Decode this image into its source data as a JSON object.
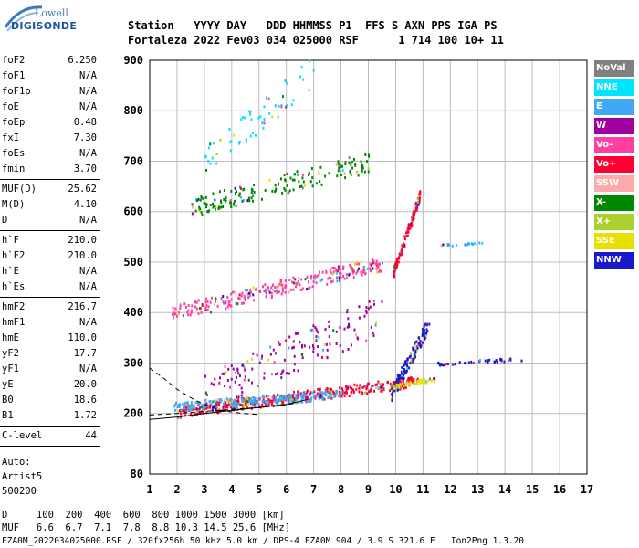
{
  "logo": {
    "top": "Lowell",
    "bottom": "DIGISONDE"
  },
  "header": {
    "row1": "Station   YYYY DAY   DDD HHMMSS P1  FFS S AXN PPS IGA PS",
    "row2": "Fortaleza 2022 Fev03 034 025000 RSF      1 714 100 10+ 11"
  },
  "params_group1": [
    {
      "label": "foF2",
      "value": "6.250"
    },
    {
      "label": "foF1",
      "value": "N/A"
    },
    {
      "label": "foF1p",
      "value": "N/A"
    },
    {
      "label": "foE",
      "value": "N/A"
    },
    {
      "label": "foEp",
      "value": "0.48"
    },
    {
      "label": "fxI",
      "value": "7.30"
    },
    {
      "label": "foEs",
      "value": "N/A"
    },
    {
      "label": "fmin",
      "value": "3.70"
    }
  ],
  "params_group2": [
    {
      "label": "MUF(D)",
      "value": "25.62"
    },
    {
      "label": "M(D)",
      "value": "4.10"
    },
    {
      "label": "D",
      "value": "N/A"
    }
  ],
  "params_group3": [
    {
      "label": "h`F",
      "value": "210.0"
    },
    {
      "label": "h`F2",
      "value": "210.0"
    },
    {
      "label": "h`E",
      "value": "N/A"
    },
    {
      "label": "h`Es",
      "value": "N/A"
    }
  ],
  "params_group4": [
    {
      "label": "hmF2",
      "value": "216.7"
    },
    {
      "label": "hmF1",
      "value": "N/A"
    },
    {
      "label": "hmE",
      "value": "110.0"
    },
    {
      "label": "yF2",
      "value": "17.7"
    },
    {
      "label": "yF1",
      "value": "N/A"
    },
    {
      "label": "yE",
      "value": "20.0"
    },
    {
      "label": "B0",
      "value": "18.6"
    },
    {
      "label": "B1",
      "value": "1.72"
    }
  ],
  "params_group5": [
    {
      "label": "C-level",
      "value": "44"
    }
  ],
  "auto": {
    "line1": "Auto:",
    "line2": "Artist5",
    "line3": "500200"
  },
  "legend": [
    {
      "name": "NoVal",
      "color": "#808080"
    },
    {
      "name": "NNE",
      "color": "#00e5ff"
    },
    {
      "name": "E",
      "color": "#3fa9f5"
    },
    {
      "name": "W",
      "color": "#a000a0"
    },
    {
      "name": "Vo-",
      "color": "#ff40a0"
    },
    {
      "name": "Vo+",
      "color": "#ff0033"
    },
    {
      "name": "SSW",
      "color": "#ffaaaa"
    },
    {
      "name": "X-",
      "color": "#008800"
    },
    {
      "name": "X+",
      "color": "#aad030"
    },
    {
      "name": "SSE",
      "color": "#e8e000"
    },
    {
      "name": "NNW",
      "color": "#1a1acc"
    }
  ],
  "bottom": {
    "d_row": "D     100  200  400  600  800 1000 1500 3000 [km]",
    "muf_row": "MUF   6.6  6.7  7.1  7.8  8.8 10.3 14.5 25.6 [MHz]",
    "footer": "FZA0M_2022034025000.RSF / 320fx256h 50 kHz 5.0 km / DPS-4 FZA0M 904 / 3.9 S 321.6 E   Ion2Png 1.3.20"
  },
  "chart_data": {
    "type": "scatter",
    "xlim": [
      1,
      17
    ],
    "ylim": [
      80,
      900
    ],
    "x_ticks": [
      1,
      2,
      3,
      4,
      5,
      6,
      7,
      8,
      9,
      10,
      11,
      12,
      13,
      14,
      15,
      16,
      17
    ],
    "y_ticks": [
      80,
      200,
      300,
      400,
      500,
      600,
      700,
      800,
      900
    ],
    "grid": true,
    "legend_position": "right",
    "traces": [
      {
        "name": "F-layer 1st hop",
        "color": "#ff0033",
        "x_range": [
          2.0,
          10.8
        ],
        "y_start": 205,
        "y_end": 265,
        "spread": 22,
        "count": 420
      },
      {
        "name": "F-layer 1st hop o",
        "color": "#3fa9f5",
        "x_range": [
          1.8,
          8.0
        ],
        "y_start": 215,
        "y_end": 240,
        "spread": 18,
        "count": 220
      },
      {
        "name": "2nd hop",
        "color": "#ff40a0",
        "x_range": [
          1.8,
          9.5
        ],
        "y_start": 400,
        "y_end": 500,
        "spread": 30,
        "count": 280
      },
      {
        "name": "3rd hop",
        "color": "#008800",
        "x_range": [
          2.5,
          9.0
        ],
        "y_start": 610,
        "y_end": 700,
        "spread": 40,
        "count": 170
      },
      {
        "name": "Spread F",
        "color": "#a000a0",
        "x_range": [
          3.0,
          9.5
        ],
        "y_start": 240,
        "y_end": 400,
        "spread": 80,
        "count": 160
      },
      {
        "name": "Top",
        "color": "#00e5ff",
        "x_range": [
          3.0,
          7.0
        ],
        "y_start": 700,
        "y_end": 880,
        "spread": 60,
        "count": 60
      },
      {
        "name": "Cusp 1",
        "color": "#1a1acc",
        "x_range": [
          9.8,
          11.2
        ],
        "y_start": 240,
        "y_end": 380,
        "spread": 30,
        "count": 140
      },
      {
        "name": "Cusp 2",
        "color": "#ff0033",
        "x_range": [
          9.9,
          10.9
        ],
        "y_start": 480,
        "y_end": 640,
        "spread": 20,
        "count": 110
      },
      {
        "name": "Oblique",
        "color": "#1a1acc",
        "x_range": [
          11.5,
          14.6
        ],
        "y_start": 300,
        "y_end": 310,
        "spread": 6,
        "count": 40
      },
      {
        "name": "Oblique 2",
        "color": "#3fa9f5",
        "x_range": [
          11.5,
          13.2
        ],
        "y_start": 535,
        "y_end": 540,
        "spread": 4,
        "count": 20
      },
      {
        "name": "SSE",
        "color": "#e8e000",
        "x_range": [
          9.8,
          11.4
        ],
        "y_start": 255,
        "y_end": 270,
        "spread": 8,
        "count": 50
      }
    ],
    "fit_curves": [
      {
        "style": "solid",
        "points": [
          [
            1.0,
            188
          ],
          [
            2,
            193
          ],
          [
            3,
            200
          ],
          [
            4,
            206
          ],
          [
            5,
            212
          ],
          [
            6,
            218
          ],
          [
            6.8,
            228
          ]
        ]
      },
      {
        "style": "dashed",
        "points": [
          [
            1.0,
            290
          ],
          [
            1.5,
            270
          ],
          [
            2.0,
            248
          ],
          [
            2.6,
            228
          ],
          [
            3.0,
            218
          ],
          [
            3.6,
            206
          ],
          [
            4.4,
            200
          ],
          [
            5.0,
            198
          ]
        ]
      },
      {
        "style": "dashed",
        "points": [
          [
            1.0,
            197
          ],
          [
            2.0,
            200
          ],
          [
            3.0,
            204
          ],
          [
            4.0,
            208
          ],
          [
            5.0,
            212
          ],
          [
            5.8,
            215
          ],
          [
            6.3,
            220
          ]
        ]
      }
    ]
  }
}
